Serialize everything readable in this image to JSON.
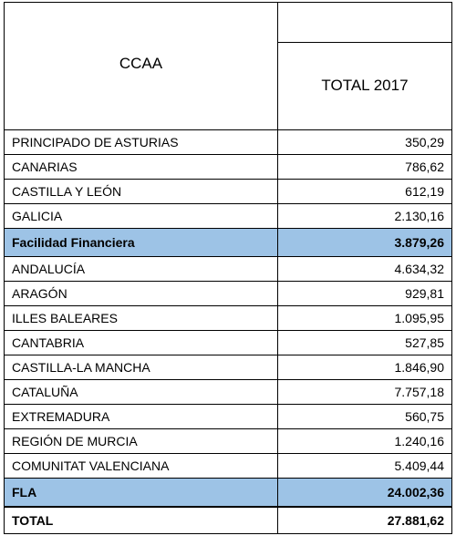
{
  "header": {
    "region": "CCAA",
    "total": "TOTAL 2017"
  },
  "table": {
    "rows": [
      [
        "PRINCIPADO DE ASTURIAS",
        "350,29"
      ],
      [
        "CANARIAS",
        "786,62"
      ],
      [
        "CASTILLA Y LEÓN",
        "612,19"
      ],
      [
        "GALICIA",
        "2.130,16"
      ],
      [
        "Facilidad Financiera",
        "3.879,26"
      ],
      [
        "ANDALUCÍA",
        "4.634,32"
      ],
      [
        "ARAGÓN",
        "929,81"
      ],
      [
        "ILLES BALEARES",
        "1.095,95"
      ],
      [
        "CANTABRIA",
        "527,85"
      ],
      [
        "CASTILLA-LA MANCHA",
        "1.846,90"
      ],
      [
        "CATALUÑA",
        "7.757,18"
      ],
      [
        "EXTREMADURA",
        "560,75"
      ],
      [
        "REGIÓN DE MURCIA",
        "1.240,16"
      ],
      [
        "COMUNITAT VALENCIANA",
        "5.409,44"
      ],
      [
        "FLA",
        "24.002,36"
      ],
      [
        "TOTAL",
        "27.881,62"
      ]
    ]
  }
}
